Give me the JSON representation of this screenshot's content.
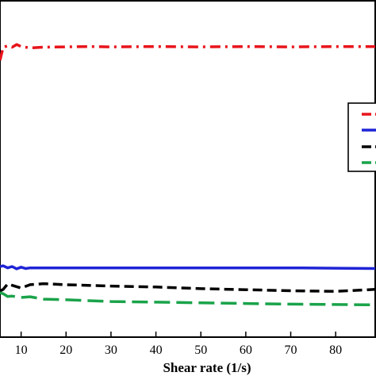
{
  "chart_data": {
    "type": "line",
    "xlabel": "Shear rate (1/s)",
    "x_ticks": [
      "10",
      "20",
      "30",
      "40",
      "50",
      "60",
      "70",
      "80"
    ],
    "xlim": [
      5.3,
      88.8
    ],
    "ylim": [
      0,
      100
    ],
    "grid": false,
    "legend_position": "right (partially visible)",
    "series": [
      {
        "color": "#e8141b",
        "dash": "dash-dot",
        "x": [
          5.3,
          6,
          7,
          8,
          9,
          10,
          12,
          15,
          20,
          25,
          30,
          40,
          50,
          60,
          70,
          80,
          88.8
        ],
        "y": [
          82.3,
          86.2,
          86.6,
          86.2,
          87.0,
          86.4,
          86.0,
          86.2,
          86.3,
          86.4,
          86.3,
          86.4,
          86.3,
          86.4,
          86.3,
          86.4,
          86.4
        ]
      },
      {
        "color": "#1f24d6",
        "dash": "solid",
        "x": [
          5.3,
          6,
          7,
          8,
          9,
          10,
          11,
          12,
          14,
          20,
          30,
          40,
          50,
          60,
          70,
          80,
          88.8
        ],
        "y": [
          21.0,
          21.2,
          20.6,
          21.0,
          20.3,
          20.8,
          20.4,
          20.6,
          20.6,
          20.6,
          20.6,
          20.6,
          20.6,
          20.6,
          20.6,
          20.5,
          20.4
        ]
      },
      {
        "color": "#000000",
        "dash": "dash",
        "x": [
          5.3,
          6,
          7,
          8,
          10,
          12,
          15,
          20,
          30,
          40,
          50,
          60,
          70,
          80,
          88.8
        ],
        "y": [
          13.7,
          14.2,
          15.8,
          15.4,
          14.6,
          15.6,
          15.9,
          15.6,
          15.2,
          14.9,
          14.4,
          14.1,
          13.8,
          13.6,
          14.2
        ]
      },
      {
        "color": "#1aa34a",
        "dash": "long-dash",
        "x": [
          5.3,
          6,
          7,
          8,
          10,
          12,
          15,
          20,
          30,
          40,
          50,
          60,
          70,
          80,
          88.8
        ],
        "y": [
          13.2,
          12.9,
          12.1,
          12.2,
          11.8,
          12.0,
          11.3,
          11.1,
          10.6,
          10.4,
          10.2,
          10.0,
          9.8,
          9.7,
          9.6
        ]
      }
    ]
  },
  "colors": {
    "red": "#e8141b",
    "blue": "#1f24d6",
    "black": "#000000",
    "green": "#1aa34a"
  }
}
